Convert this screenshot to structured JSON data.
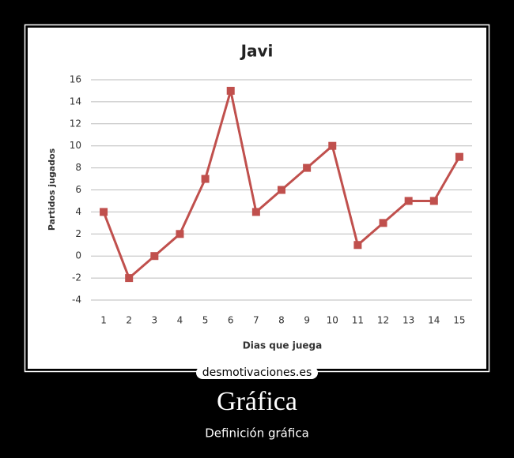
{
  "chart_data": {
    "type": "line",
    "title": "Javi",
    "x_label": "Dias que juega",
    "y_label": "Partidos jugados",
    "categories": [
      "1",
      "2",
      "3",
      "4",
      "5",
      "6",
      "7",
      "8",
      "9",
      "10",
      "11",
      "12",
      "13",
      "14",
      "15"
    ],
    "series": [
      {
        "name": "Javi",
        "color": "#c0504d",
        "values": [
          4,
          -2,
          0,
          2,
          7,
          15,
          4,
          6,
          8,
          10,
          1,
          3,
          5,
          5,
          9
        ]
      }
    ],
    "ylim": [
      -4,
      16
    ],
    "yticks": [
      -4,
      -2,
      0,
      2,
      4,
      6,
      8,
      10,
      12,
      14,
      16
    ],
    "grid": true,
    "legend": false
  },
  "poster": {
    "watermark": "desmotivaciones.es",
    "title": "Gráfica",
    "caption": "Definición gráfica"
  }
}
